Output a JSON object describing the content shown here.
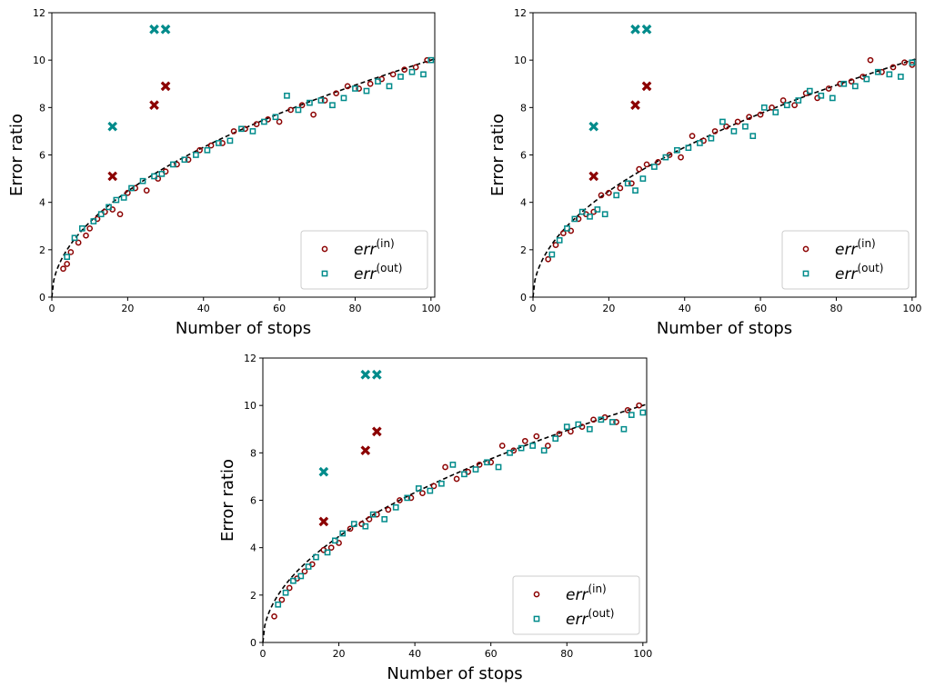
{
  "colors": {
    "in": "#8b0000",
    "out": "#008b8b",
    "fit": "#000000"
  },
  "chart_data": [
    {
      "type": "scatter",
      "xlabel": "Number of stops",
      "ylabel": "Error ratio",
      "xlim": [
        0,
        101
      ],
      "ylim": [
        0,
        12
      ],
      "xticks": [
        "0",
        "20",
        "40",
        "60",
        "80",
        "100"
      ],
      "yticks": [
        "0",
        "2",
        "4",
        "6",
        "8",
        "10",
        "12"
      ],
      "grid": false,
      "legend_position": "lower-right",
      "legend": [
        "err^(in)",
        "err^(out)"
      ],
      "series": [
        {
          "name": "err^(in)",
          "marker": "circle",
          "x": [
            3,
            4,
            5,
            7,
            9,
            10,
            12,
            14,
            16,
            18,
            20,
            22,
            25,
            28,
            30,
            33,
            36,
            39,
            42,
            45,
            48,
            51,
            54,
            57,
            60,
            63,
            66,
            69,
            72,
            75,
            78,
            81,
            84,
            87,
            90,
            93,
            96,
            99
          ],
          "y": [
            1.2,
            1.4,
            1.9,
            2.3,
            2.6,
            2.9,
            3.3,
            3.6,
            3.7,
            3.5,
            4.4,
            4.6,
            4.5,
            5.0,
            5.3,
            5.6,
            5.8,
            6.2,
            6.4,
            6.5,
            7.0,
            7.1,
            7.3,
            7.5,
            7.4,
            7.9,
            8.1,
            7.7,
            8.3,
            8.6,
            8.9,
            8.8,
            9.0,
            9.2,
            9.4,
            9.6,
            9.7,
            10.0
          ]
        },
        {
          "name": "err^(out)",
          "marker": "square",
          "x": [
            4,
            6,
            8,
            11,
            13,
            15,
            17,
            19,
            21,
            24,
            27,
            29,
            32,
            35,
            38,
            41,
            44,
            47,
            50,
            53,
            56,
            59,
            62,
            65,
            68,
            71,
            74,
            77,
            80,
            83,
            86,
            89,
            92,
            95,
            98,
            100
          ],
          "y": [
            1.7,
            2.5,
            2.9,
            3.2,
            3.5,
            3.8,
            4.1,
            4.2,
            4.6,
            4.9,
            5.1,
            5.2,
            5.6,
            5.8,
            6.0,
            6.2,
            6.5,
            6.6,
            7.1,
            7.0,
            7.4,
            7.6,
            8.5,
            7.9,
            8.2,
            8.3,
            8.1,
            8.4,
            8.8,
            8.7,
            9.1,
            8.9,
            9.3,
            9.5,
            9.4,
            10.0
          ]
        }
      ],
      "outliers": [
        {
          "series": "err^(in)",
          "x": [
            16,
            27,
            30
          ],
          "y": [
            5.1,
            8.1,
            8.9
          ]
        },
        {
          "series": "err^(out)",
          "x": [
            16,
            27,
            30
          ],
          "y": [
            7.2,
            11.3,
            11.3
          ]
        }
      ],
      "fit": {
        "form": "a*sqrt(x)",
        "a": 1.0
      }
    },
    {
      "type": "scatter",
      "xlabel": "Number of stops",
      "ylabel": "Error ratio",
      "xlim": [
        0,
        101
      ],
      "ylim": [
        0,
        12
      ],
      "xticks": [
        "0",
        "20",
        "40",
        "60",
        "80",
        "100"
      ],
      "yticks": [
        "0",
        "2",
        "4",
        "6",
        "8",
        "10",
        "12"
      ],
      "grid": false,
      "legend_position": "lower-right",
      "legend": [
        "err^(in)",
        "err^(out)"
      ],
      "series": [
        {
          "name": "err^(in)",
          "marker": "circle",
          "x": [
            4,
            6,
            8,
            10,
            12,
            14,
            16,
            18,
            20,
            23,
            26,
            28,
            30,
            33,
            36,
            39,
            42,
            45,
            48,
            51,
            54,
            57,
            60,
            63,
            66,
            69,
            72,
            75,
            78,
            81,
            84,
            87,
            89,
            92,
            95,
            98,
            100
          ],
          "y": [
            1.6,
            2.2,
            2.7,
            2.8,
            3.3,
            3.5,
            3.6,
            4.3,
            4.4,
            4.6,
            4.8,
            5.4,
            5.6,
            5.7,
            6.0,
            5.9,
            6.8,
            6.6,
            7.0,
            7.2,
            7.4,
            7.6,
            7.7,
            8.0,
            8.3,
            8.1,
            8.6,
            8.4,
            8.8,
            9.0,
            9.1,
            9.3,
            10.0,
            9.5,
            9.7,
            9.9,
            9.8
          ]
        },
        {
          "name": "err^(out)",
          "marker": "square",
          "x": [
            5,
            7,
            9,
            11,
            13,
            15,
            17,
            19,
            22,
            25,
            27,
            29,
            32,
            35,
            38,
            41,
            44,
            47,
            50,
            53,
            56,
            58,
            61,
            64,
            67,
            70,
            73,
            76,
            79,
            82,
            85,
            88,
            91,
            94,
            97,
            100
          ],
          "y": [
            1.8,
            2.4,
            2.9,
            3.3,
            3.6,
            3.4,
            3.7,
            3.5,
            4.3,
            4.8,
            4.5,
            5.0,
            5.5,
            5.9,
            6.2,
            6.3,
            6.5,
            6.7,
            7.4,
            7.0,
            7.2,
            6.8,
            8.0,
            7.8,
            8.1,
            8.3,
            8.7,
            8.5,
            8.4,
            9.0,
            8.9,
            9.2,
            9.5,
            9.4,
            9.3,
            9.9
          ]
        }
      ],
      "outliers": [
        {
          "series": "err^(in)",
          "x": [
            16,
            27,
            30
          ],
          "y": [
            5.1,
            8.1,
            8.9
          ]
        },
        {
          "series": "err^(out)",
          "x": [
            16,
            27,
            30
          ],
          "y": [
            7.2,
            11.3,
            11.3
          ]
        }
      ],
      "fit": {
        "form": "a*sqrt(x)",
        "a": 1.0
      }
    },
    {
      "type": "scatter",
      "xlabel": "Number of stops",
      "ylabel": "Error ratio",
      "xlim": [
        0,
        101
      ],
      "ylim": [
        0,
        12
      ],
      "xticks": [
        "0",
        "20",
        "40",
        "60",
        "80",
        "100"
      ],
      "yticks": [
        "0",
        "2",
        "4",
        "6",
        "8",
        "10",
        "12"
      ],
      "grid": false,
      "legend_position": "lower-right",
      "legend": [
        "err^(in)",
        "err^(out)"
      ],
      "series": [
        {
          "name": "err^(in)",
          "marker": "circle",
          "x": [
            3,
            5,
            7,
            9,
            11,
            13,
            16,
            18,
            20,
            23,
            26,
            28,
            30,
            33,
            36,
            39,
            42,
            45,
            48,
            51,
            54,
            57,
            60,
            63,
            66,
            69,
            72,
            75,
            78,
            81,
            84,
            87,
            90,
            93,
            96,
            99
          ],
          "y": [
            1.1,
            1.8,
            2.3,
            2.7,
            3.0,
            3.3,
            3.9,
            4.0,
            4.2,
            4.8,
            5.0,
            5.2,
            5.4,
            5.6,
            6.0,
            6.1,
            6.3,
            6.6,
            7.4,
            6.9,
            7.2,
            7.5,
            7.6,
            8.3,
            8.1,
            8.5,
            8.7,
            8.3,
            8.8,
            8.9,
            9.1,
            9.4,
            9.5,
            9.3,
            9.8,
            10.0
          ]
        },
        {
          "name": "err^(out)",
          "marker": "square",
          "x": [
            4,
            6,
            8,
            10,
            12,
            14,
            17,
            19,
            21,
            24,
            27,
            29,
            32,
            35,
            38,
            41,
            44,
            47,
            50,
            53,
            56,
            59,
            62,
            65,
            68,
            71,
            74,
            77,
            80,
            83,
            86,
            89,
            92,
            95,
            97,
            100
          ],
          "y": [
            1.6,
            2.1,
            2.6,
            2.8,
            3.2,
            3.6,
            3.8,
            4.3,
            4.6,
            5.0,
            4.9,
            5.4,
            5.2,
            5.7,
            6.1,
            6.5,
            6.4,
            6.7,
            7.5,
            7.1,
            7.3,
            7.6,
            7.4,
            8.0,
            8.2,
            8.3,
            8.1,
            8.6,
            9.1,
            9.2,
            9.0,
            9.4,
            9.3,
            9.0,
            9.6,
            9.7
          ]
        }
      ],
      "outliers": [
        {
          "series": "err^(in)",
          "x": [
            16,
            27,
            30
          ],
          "y": [
            5.1,
            8.1,
            8.9
          ]
        },
        {
          "series": "err^(out)",
          "x": [
            16,
            27,
            30
          ],
          "y": [
            7.2,
            11.3,
            11.3
          ]
        }
      ],
      "fit": {
        "form": "a*sqrt(x)",
        "a": 1.0
      }
    }
  ]
}
